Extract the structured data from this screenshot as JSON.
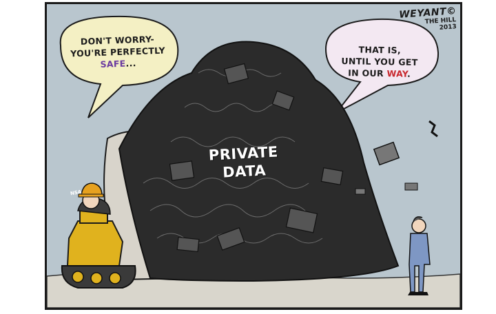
{
  "cartoon": {
    "left_bubble": {
      "line1": "DON'T WORRY-",
      "line2": "YOU'RE PERFECTLY",
      "emphasis": "SAFE",
      "ellipsis": "..."
    },
    "right_bubble": {
      "line1": "THAT IS,",
      "line2": "UNTIL YOU GET",
      "line3_prefix": "IN OUR",
      "emphasis": "WAY",
      "period": "."
    },
    "pile_label": {
      "line1": "PRIVATE",
      "line2": "DATA"
    },
    "helmet_badge": "NSA",
    "signature": {
      "name": "WEYANT©",
      "publication": "THE HILL",
      "year": "2013"
    }
  },
  "colors": {
    "sky": "#b9c6ce",
    "bubble_left": "#f4f0c4",
    "bubble_right": "#f3e8f2",
    "safe_word": "#6a3aa0",
    "way_word": "#c8282e",
    "bulldozer": "#e0b21e",
    "helmet": "#e6a11f",
    "suit": "#7e97c4",
    "pile": "#2b2b2b"
  }
}
